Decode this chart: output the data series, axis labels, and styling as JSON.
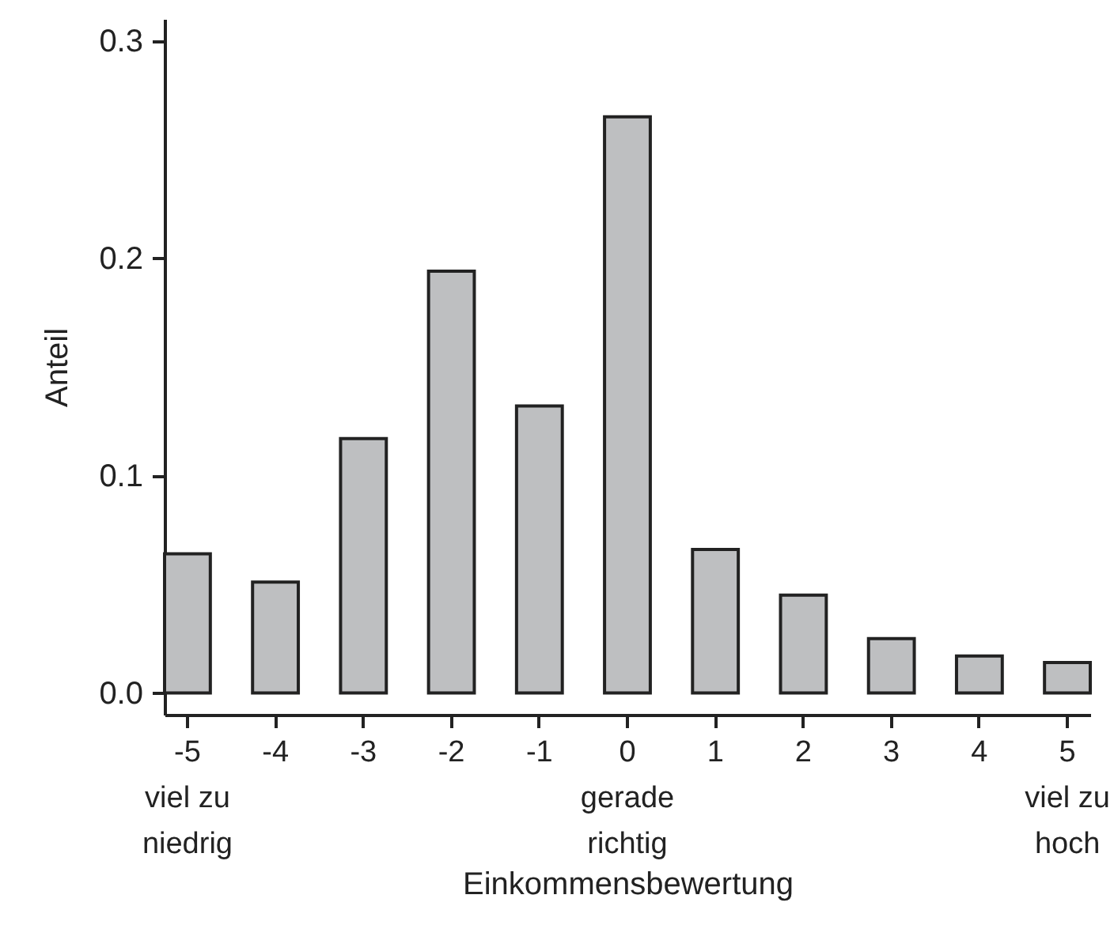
{
  "chart_data": {
    "type": "bar",
    "xlabel": "Einkommensbewertung",
    "ylabel": "Anteil",
    "categories": [
      "-5\nviel zu\nniedrig",
      "-4",
      "-3",
      "-2",
      "-1",
      "0\ngerade\nrichtig",
      "1",
      "2",
      "3",
      "4",
      "5\nviel zu\nhoch"
    ],
    "values": [
      0.064,
      0.051,
      0.117,
      0.194,
      0.132,
      0.265,
      0.066,
      0.045,
      0.025,
      0.017,
      0.014
    ],
    "color": "#bebfc1",
    "ylim": [
      -0.01,
      0.31
    ],
    "yticks": [
      {
        "value": 0,
        "label": "0.0"
      },
      0.1,
      0.2,
      0.3
    ],
    "grid": false
  }
}
